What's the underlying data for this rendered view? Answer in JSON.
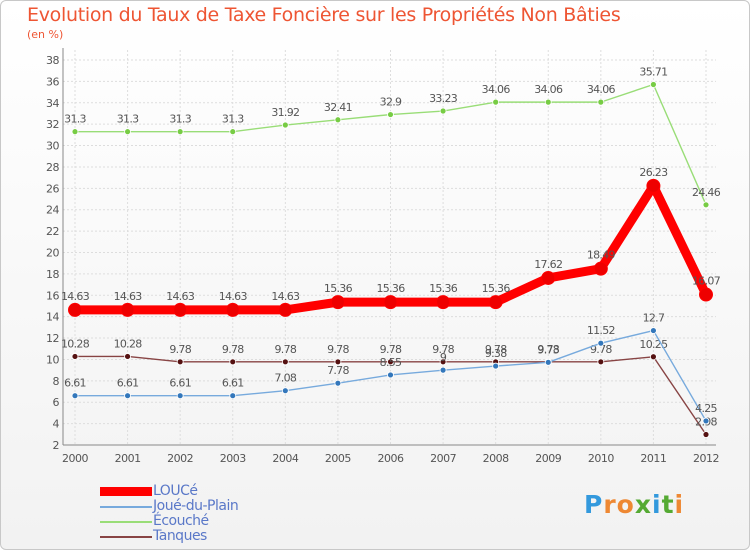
{
  "chart_data": {
    "type": "line",
    "title": "Evolution du Taux de Taxe Foncière sur les Propriétés Non Bâties",
    "subtitle": "(en %)",
    "xlabel": "",
    "ylabel": "",
    "ylim": [
      2,
      38
    ],
    "y_ticks": [
      2,
      4,
      6,
      8,
      10,
      12,
      14,
      16,
      18,
      20,
      22,
      24,
      26,
      28,
      30,
      32,
      34,
      36,
      38
    ],
    "x": [
      "2000",
      "2001",
      "2002",
      "2003",
      "2004",
      "2005",
      "2006",
      "2007",
      "2008",
      "2009",
      "2010",
      "2011",
      "2012"
    ],
    "grid": true,
    "legend_position": "bottom-left",
    "series": [
      {
        "name": "Écouché",
        "color": "#99dd77",
        "marker": "#77cc44",
        "thick": false,
        "values": [
          31.3,
          31.3,
          31.3,
          31.3,
          31.92,
          32.41,
          32.9,
          33.23,
          34.06,
          34.06,
          34.06,
          35.71,
          24.46
        ],
        "labels": [
          "31.3",
          "31.3",
          "31.3",
          "31.3",
          "31.92",
          "32.41",
          "32.9",
          "33.23",
          "34.06",
          "34.06",
          "34.06",
          "35.71",
          "24.46"
        ]
      },
      {
        "name": "Tanques",
        "color": "#884444",
        "marker": "#551111",
        "thick": false,
        "values": [
          10.28,
          10.28,
          9.78,
          9.78,
          9.78,
          9.78,
          9.78,
          9.78,
          9.78,
          9.78,
          9.78,
          10.25,
          2.98
        ],
        "labels": [
          "10.28",
          "10.28",
          "9.78",
          "9.78",
          "9.78",
          "9.78",
          "9.78",
          "9.78",
          "9.78",
          "9.78",
          "9.78",
          "10.25",
          "2.98"
        ]
      },
      {
        "name": "Joué-du-Plain",
        "color": "#77aadd",
        "marker": "#3377bb",
        "thick": false,
        "values": [
          6.61,
          6.61,
          6.61,
          6.61,
          7.08,
          7.78,
          8.55,
          9.0,
          9.38,
          9.73,
          11.52,
          12.7,
          4.25
        ],
        "labels": [
          "6.61",
          "6.61",
          "6.61",
          "6.61",
          "7.08",
          "7.78",
          "8.55",
          "9",
          "9.38",
          "9.73",
          "11.52",
          "12.7",
          "4.25"
        ]
      },
      {
        "name": "LOUCé",
        "color": "#ff0000",
        "marker": "#ee0000",
        "thick": true,
        "values": [
          14.63,
          14.63,
          14.63,
          14.63,
          14.63,
          15.36,
          15.36,
          15.36,
          15.36,
          17.62,
          18.49,
          26.23,
          16.07
        ],
        "labels": [
          "14.63",
          "14.63",
          "14.63",
          "14.63",
          "14.63",
          "15.36",
          "15.36",
          "15.36",
          "15.36",
          "17.62",
          "18.49",
          "26.23",
          "16.07"
        ]
      }
    ],
    "legend": [
      {
        "name": "LOUCé",
        "color": "#ff0000",
        "thick": true
      },
      {
        "name": "Joué-du-Plain",
        "color": "#77aadd",
        "thick": false
      },
      {
        "name": "Écouché",
        "color": "#99dd77",
        "thick": false
      },
      {
        "name": "Tanques",
        "color": "#884444",
        "thick": false
      }
    ]
  },
  "brand": {
    "letters": [
      "P",
      "r",
      "o",
      "x",
      "i",
      "t",
      "i"
    ],
    "colors": [
      "#3399dd",
      "#ee8833",
      "#ee8833",
      "#55aa33",
      "#3399dd",
      "#55aa33",
      "#ee8833"
    ]
  }
}
